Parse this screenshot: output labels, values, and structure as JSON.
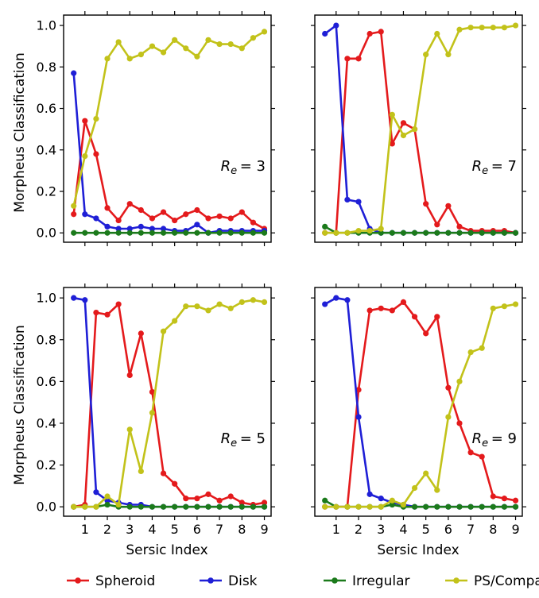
{
  "chart_data": {
    "type": "line",
    "legend": {
      "placement": "bottom",
      "entries": [
        "Spheroid",
        "Disk",
        "Irregular",
        "PS/Compact"
      ]
    },
    "series_colors": {
      "Spheroid": "#e41a1c",
      "Disk": "#1f1fd6",
      "Irregular": "#1b7a1b",
      "PS/Compact": "#c2c21a"
    },
    "x": [
      0.5,
      1.0,
      1.5,
      2.0,
      2.5,
      3.0,
      3.5,
      4.0,
      4.5,
      5.0,
      5.5,
      6.0,
      6.5,
      7.0,
      7.5,
      8.0,
      8.5,
      9.0
    ],
    "xlim": [
      0.05,
      9.3
    ],
    "ylim": [
      -0.045,
      1.05
    ],
    "xticks": [
      "1",
      "2",
      "3",
      "4",
      "5",
      "6",
      "7",
      "8",
      "9"
    ],
    "yticks": [
      "0.0",
      "0.2",
      "0.4",
      "0.6",
      "0.8",
      "1.0"
    ],
    "xlabel": "Sersic Index",
    "ylabel": "Morpheus Classification",
    "panels": [
      {
        "annotation": "R_e = 3",
        "annotation_sub": "e",
        "annotation_value": "= 3",
        "series": [
          {
            "name": "Spheroid",
            "values": [
              0.09,
              0.54,
              0.38,
              0.12,
              0.06,
              0.14,
              0.11,
              0.07,
              0.1,
              0.06,
              0.09,
              0.11,
              0.07,
              0.08,
              0.07,
              0.1,
              0.05,
              0.02
            ]
          },
          {
            "name": "Disk",
            "values": [
              0.77,
              0.09,
              0.07,
              0.03,
              0.02,
              0.02,
              0.03,
              0.02,
              0.02,
              0.01,
              0.01,
              0.04,
              0.0,
              0.01,
              0.01,
              0.01,
              0.01,
              0.01
            ]
          },
          {
            "name": "Irregular",
            "values": [
              0.0,
              0.0,
              0.0,
              0.0,
              0.0,
              0.0,
              0.0,
              0.0,
              0.0,
              0.0,
              0.0,
              0.0,
              0.0,
              0.0,
              0.0,
              0.0,
              0.0,
              0.0
            ]
          },
          {
            "name": "PS/Compact",
            "values": [
              0.13,
              0.37,
              0.55,
              0.84,
              0.92,
              0.84,
              0.86,
              0.9,
              0.87,
              0.93,
              0.89,
              0.85,
              0.93,
              0.91,
              0.91,
              0.89,
              0.94,
              0.97
            ]
          }
        ]
      },
      {
        "annotation": "R_e = 7",
        "annotation_sub": "e",
        "annotation_value": "= 7",
        "series": [
          {
            "name": "Spheroid",
            "values": [
              0.0,
              0.0,
              0.84,
              0.84,
              0.96,
              0.97,
              0.43,
              0.53,
              0.5,
              0.14,
              0.04,
              0.13,
              0.03,
              0.01,
              0.01,
              0.01,
              0.01,
              0.0
            ]
          },
          {
            "name": "Disk",
            "values": [
              0.96,
              1.0,
              0.16,
              0.15,
              0.02,
              0.0,
              0.0,
              0.0,
              0.0,
              0.0,
              0.0,
              0.0,
              0.0,
              0.0,
              0.0,
              0.0,
              0.0,
              0.0
            ]
          },
          {
            "name": "Irregular",
            "values": [
              0.03,
              0.0,
              0.0,
              0.0,
              0.0,
              0.0,
              0.0,
              0.0,
              0.0,
              0.0,
              0.0,
              0.0,
              0.0,
              0.0,
              0.0,
              0.0,
              0.0,
              0.0
            ]
          },
          {
            "name": "PS/Compact",
            "values": [
              0.0,
              0.0,
              0.0,
              0.01,
              0.01,
              0.02,
              0.57,
              0.47,
              0.5,
              0.86,
              0.96,
              0.86,
              0.98,
              0.99,
              0.99,
              0.99,
              0.99,
              1.0
            ]
          }
        ]
      },
      {
        "annotation": "R_e = 5",
        "annotation_sub": "e",
        "annotation_value": "= 5",
        "series": [
          {
            "name": "Spheroid",
            "values": [
              0.0,
              0.01,
              0.93,
              0.92,
              0.97,
              0.63,
              0.83,
              0.55,
              0.16,
              0.11,
              0.04,
              0.04,
              0.06,
              0.03,
              0.05,
              0.02,
              0.01,
              0.02
            ]
          },
          {
            "name": "Disk",
            "values": [
              1.0,
              0.99,
              0.07,
              0.03,
              0.02,
              0.01,
              0.01,
              0.0,
              0.0,
              0.0,
              0.0,
              0.0,
              0.0,
              0.0,
              0.0,
              0.0,
              0.0,
              0.0
            ]
          },
          {
            "name": "Irregular",
            "values": [
              0.0,
              0.0,
              0.0,
              0.01,
              0.0,
              0.0,
              0.0,
              0.0,
              0.0,
              0.0,
              0.0,
              0.0,
              0.0,
              0.0,
              0.0,
              0.0,
              0.0,
              0.0
            ]
          },
          {
            "name": "PS/Compact",
            "values": [
              0.0,
              0.0,
              0.0,
              0.05,
              0.01,
              0.37,
              0.17,
              0.45,
              0.84,
              0.89,
              0.96,
              0.96,
              0.94,
              0.97,
              0.95,
              0.98,
              0.99,
              0.98
            ]
          }
        ]
      },
      {
        "annotation": "R_e = 9",
        "annotation_sub": "e",
        "annotation_value": "= 9",
        "series": [
          {
            "name": "Spheroid",
            "values": [
              0.0,
              0.0,
              0.0,
              0.56,
              0.94,
              0.95,
              0.94,
              0.98,
              0.91,
              0.83,
              0.91,
              0.57,
              0.4,
              0.26,
              0.24,
              0.05,
              0.04,
              0.03
            ]
          },
          {
            "name": "Disk",
            "values": [
              0.97,
              1.0,
              0.99,
              0.43,
              0.06,
              0.04,
              0.02,
              0.01,
              0.0,
              0.0,
              0.0,
              0.0,
              0.0,
              0.0,
              0.0,
              0.0,
              0.0,
              0.0
            ]
          },
          {
            "name": "Irregular",
            "values": [
              0.03,
              0.0,
              0.0,
              0.0,
              0.0,
              0.0,
              0.01,
              0.0,
              0.0,
              0.0,
              0.0,
              0.0,
              0.0,
              0.0,
              0.0,
              0.0,
              0.0,
              0.0
            ]
          },
          {
            "name": "PS/Compact",
            "values": [
              0.0,
              0.0,
              0.0,
              0.0,
              0.0,
              0.0,
              0.03,
              0.01,
              0.09,
              0.16,
              0.08,
              0.43,
              0.6,
              0.74,
              0.76,
              0.95,
              0.96,
              0.97
            ]
          }
        ]
      }
    ]
  }
}
